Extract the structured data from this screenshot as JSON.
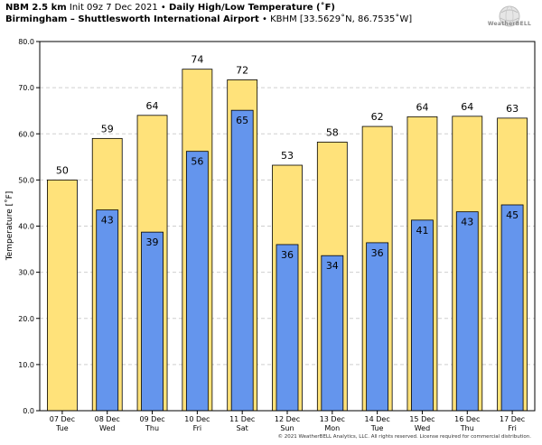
{
  "header": {
    "model": "NBM 2.5 km",
    "init": "Init 09z 7 Dec 2021",
    "title": "Daily High/Low Temperature (˚F)",
    "location": "Birmingham – Shuttlesworth International Airport",
    "station": "KBHM [33.5629˚N, 86.7535˚W]",
    "sep1": "•",
    "sep2": "•"
  },
  "logo": {
    "text": "WeatherBELL"
  },
  "footer": {
    "text": "© 2021 WeatherBELL Analytics, LLC. All rights reserved. License required for commercial distribution."
  },
  "colors": {
    "high": "#FFE27A",
    "low": "#6495ED",
    "grid": "#cfcfcf"
  },
  "chart_data": {
    "type": "bar",
    "title": "Daily High/Low Temperature (˚F)",
    "xlabel": "",
    "ylabel": "Temperature [˚F]",
    "ylim": [
      0,
      80
    ],
    "yticks": [
      "0.0",
      "10.0",
      "20.0",
      "30.0",
      "40.0",
      "50.0",
      "60.0",
      "70.0",
      "80.0"
    ],
    "grid": true,
    "categories": [
      {
        "date": "07 Dec",
        "day": "Tue"
      },
      {
        "date": "08 Dec",
        "day": "Wed"
      },
      {
        "date": "09 Dec",
        "day": "Thu"
      },
      {
        "date": "10 Dec",
        "day": "Fri"
      },
      {
        "date": "11 Dec",
        "day": "Sat"
      },
      {
        "date": "12 Dec",
        "day": "Sun"
      },
      {
        "date": "13 Dec",
        "day": "Mon"
      },
      {
        "date": "14 Dec",
        "day": "Tue"
      },
      {
        "date": "15 Dec",
        "day": "Wed"
      },
      {
        "date": "16 Dec",
        "day": "Thu"
      },
      {
        "date": "17 Dec",
        "day": "Fri"
      }
    ],
    "series": [
      {
        "values": [
          50,
          59,
          64,
          74,
          72,
          53,
          58,
          62,
          64,
          64,
          63
        ],
        "exact": [
          50.0,
          59.0,
          64.0,
          74.0,
          71.7,
          53.2,
          58.2,
          61.6,
          63.7,
          63.8,
          63.4
        ],
        "labels": [
          "50",
          "59",
          "64",
          "74",
          "72",
          "53",
          "58",
          "62",
          "64",
          "64",
          "63"
        ]
      },
      {
        "values": [
          null,
          43,
          39,
          56,
          65,
          36,
          34,
          36,
          41,
          43,
          45
        ],
        "exact": [
          null,
          43.5,
          38.7,
          56.2,
          65.1,
          36.0,
          33.6,
          36.4,
          41.3,
          43.1,
          44.6
        ],
        "labels": [
          "",
          "43",
          "39",
          "56",
          "65",
          "36",
          "34",
          "36",
          "41",
          "43",
          "45"
        ]
      }
    ]
  }
}
